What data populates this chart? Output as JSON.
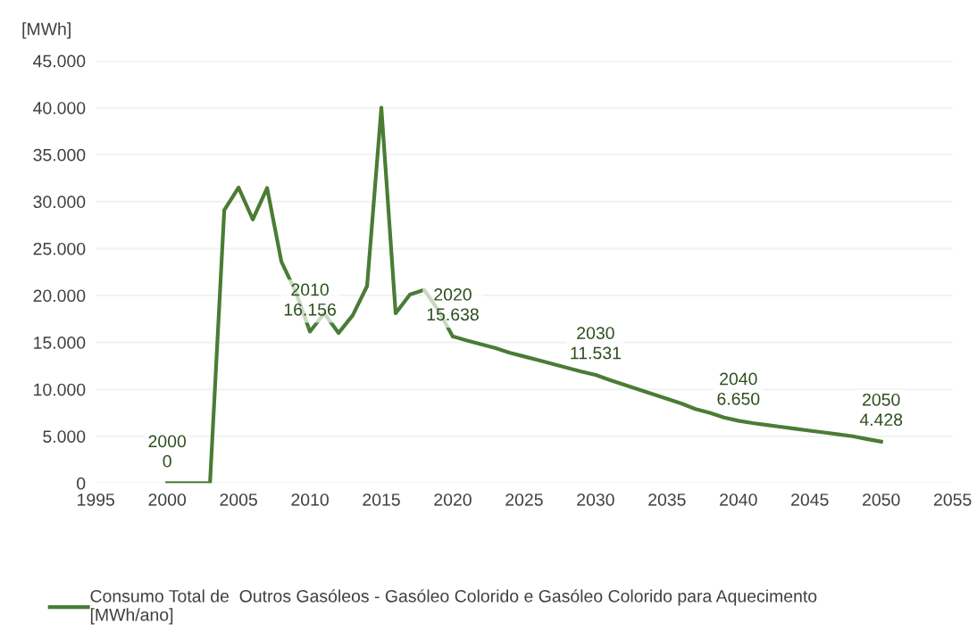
{
  "chart_data": {
    "type": "line",
    "ylabel": "[MWh]",
    "x": [
      2000,
      2001,
      2002,
      2003,
      2004,
      2005,
      2006,
      2007,
      2008,
      2009,
      2010,
      2011,
      2012,
      2013,
      2014,
      2015,
      2016,
      2017,
      2018,
      2019,
      2020,
      2021,
      2022,
      2023,
      2024,
      2025,
      2026,
      2027,
      2028,
      2029,
      2030,
      2031,
      2032,
      2033,
      2034,
      2035,
      2036,
      2037,
      2038,
      2039,
      2040,
      2041,
      2042,
      2043,
      2044,
      2045,
      2046,
      2047,
      2048,
      2049,
      2050
    ],
    "series": [
      {
        "name": "Consumo Total de  Outros Gasóleos - Gasóleo Colorido e Gasóleo Colorido para Aquecimento\n[MWh/ano]",
        "color": "#4a7c35",
        "values": [
          0,
          0,
          0,
          0,
          29100,
          31500,
          28100,
          31450,
          23600,
          20400,
          16156,
          18100,
          16000,
          17900,
          21000,
          40000,
          18100,
          20100,
          20600,
          18400,
          15638,
          15200,
          14800,
          14400,
          13900,
          13500,
          13100,
          12700,
          12300,
          11900,
          11531,
          11000,
          10500,
          10000,
          9500,
          9000,
          8500,
          7900,
          7500,
          7000,
          6650,
          6400,
          6200,
          6000,
          5800,
          5600,
          5400,
          5200,
          5000,
          4700,
          4428
        ]
      }
    ],
    "xlim": [
      1995,
      2055
    ],
    "xticks": [
      1995,
      2000,
      2005,
      2010,
      2015,
      2020,
      2025,
      2030,
      2035,
      2040,
      2045,
      2050,
      2055
    ],
    "ylim": [
      0,
      45000
    ],
    "yticks": [
      {
        "value": 0,
        "label": "0"
      },
      {
        "value": 5000,
        "label": "5.000"
      },
      {
        "value": 10000,
        "label": "10.000"
      },
      {
        "value": 15000,
        "label": "15.000"
      },
      {
        "value": 20000,
        "label": "20.000"
      },
      {
        "value": 25000,
        "label": "25.000"
      },
      {
        "value": 30000,
        "label": "30.000"
      },
      {
        "value": 35000,
        "label": "35.000"
      },
      {
        "value": 40000,
        "label": "40.000"
      },
      {
        "value": 45000,
        "label": "45.000"
      }
    ],
    "grid": "y",
    "legend": "bottom",
    "marker": "none",
    "line_style": "solid",
    "annotations": [
      {
        "text": "2000\n0",
        "x": 2000,
        "y": 0
      },
      {
        "text": "2010\n16.156",
        "x": 2010,
        "y": 16156
      },
      {
        "text": "2020\n15.638",
        "x": 2020,
        "y": 15638
      },
      {
        "text": "2030\n11.531",
        "x": 2030,
        "y": 11531
      },
      {
        "text": "2040\n6.650",
        "x": 2040,
        "y": 6650
      },
      {
        "text": "2050\n4.428",
        "x": 2050,
        "y": 4428
      }
    ]
  }
}
